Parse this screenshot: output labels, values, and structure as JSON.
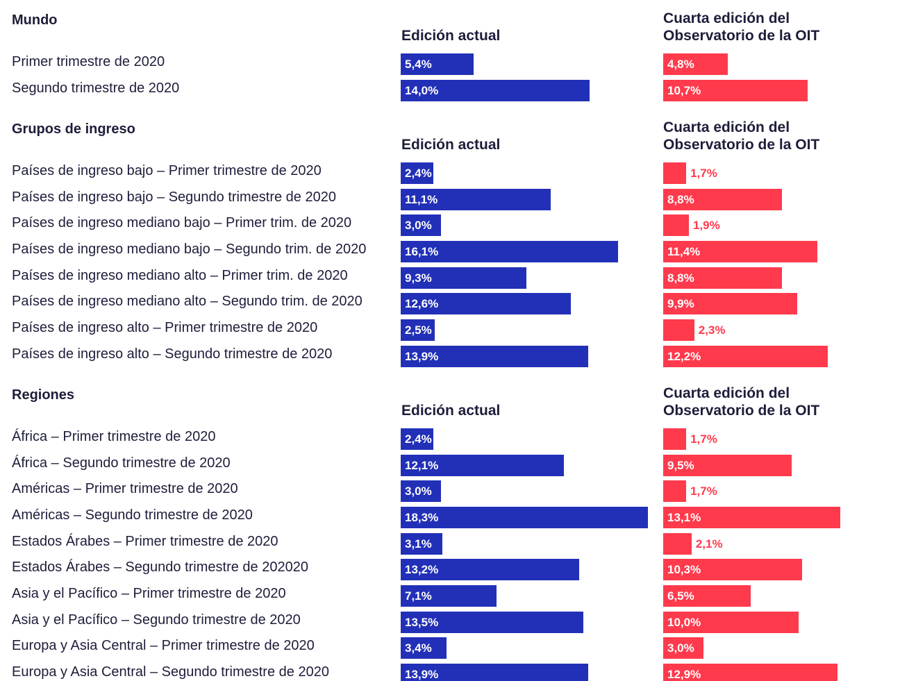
{
  "chart_data": [
    {
      "type": "bar",
      "title": "Mundo",
      "categories": [
        "Primer trimestre de 2020",
        "Segundo trimestre de 2020"
      ],
      "series": [
        {
          "name": "Edición actual",
          "color": "#2230b8",
          "values": [
            5.4,
            14.0
          ],
          "value_labels": [
            "5,4%",
            "14,0%"
          ]
        },
        {
          "name": "Cuarta edición del Observatorio de la OIT",
          "color": "#ff3a4c",
          "values": [
            4.8,
            10.7
          ],
          "value_labels": [
            "4,8%",
            "10,7%"
          ]
        }
      ]
    },
    {
      "type": "bar",
      "title": "Grupos de ingreso",
      "categories": [
        "Países de ingreso bajo – Primer trimestre de 2020",
        "Países de ingreso bajo – Segundo trimestre de 2020",
        "Países de ingreso mediano bajo – Primer trim. de 2020",
        "Países de ingreso mediano bajo – Segundo trim. de 2020",
        "Países de ingreso mediano alto – Primer trim. de 2020",
        "Países de ingreso mediano alto – Segundo trim. de 2020",
        "Países de ingreso alto – Primer trimestre de 2020",
        "Países de ingreso alto – Segundo trimestre de 2020"
      ],
      "series": [
        {
          "name": "Edición actual",
          "color": "#2230b8",
          "values": [
            2.4,
            11.1,
            3.0,
            16.1,
            9.3,
            12.6,
            2.5,
            13.9
          ],
          "value_labels": [
            "2,4%",
            "11,1%",
            "3,0%",
            "16,1%",
            "9,3%",
            "12,6%",
            "2,5%",
            "13,9%"
          ]
        },
        {
          "name": "Cuarta edición del Observatorio de la OIT",
          "color": "#ff3a4c",
          "values": [
            1.7,
            8.8,
            1.9,
            11.4,
            8.8,
            9.9,
            2.3,
            12.2
          ],
          "value_labels": [
            "1,7%",
            "8,8%",
            "1,9%",
            "11,4%",
            "8,8%",
            "9,9%",
            "2,3%",
            "12,2%"
          ]
        }
      ]
    },
    {
      "type": "bar",
      "title": "Regiones",
      "categories": [
        "África – Primer trimestre de 2020",
        "África – Segundo trimestre de 2020",
        "Américas – Primer trimestre de 2020",
        "Américas – Segundo trimestre de 2020",
        "Estados Árabes – Primer trimestre de 2020",
        "Estados Árabes – Segundo trimestre de 202020",
        "Asia y el Pacífico – Primer trimestre de 2020",
        "Asia y el Pacífico – Segundo trimestre de 2020",
        "Europa y Asia Central – Primer trimestre de 2020",
        "Europa y Asia Central – Segundo trimestre de 2020"
      ],
      "series": [
        {
          "name": "Edición actual",
          "color": "#2230b8",
          "values": [
            2.4,
            12.1,
            3.0,
            18.3,
            3.1,
            13.2,
            7.1,
            13.5,
            3.4,
            13.9
          ],
          "value_labels": [
            "2,4%",
            "12,1%",
            "3,0%",
            "18,3%",
            "3,1%",
            "13,2%",
            "7,1%",
            "13,5%",
            "3,4%",
            "13,9%"
          ]
        },
        {
          "name": "Cuarta edición del Observatorio de la OIT",
          "color": "#ff3a4c",
          "values": [
            1.7,
            9.5,
            1.7,
            13.1,
            2.1,
            10.3,
            6.5,
            10.0,
            3.0,
            12.9
          ],
          "value_labels": [
            "1,7%",
            "9,5%",
            "1,7%",
            "13,1%",
            "2,1%",
            "10,3%",
            "6,5%",
            "10,0%",
            "3,0%",
            "12,9%"
          ]
        }
      ]
    }
  ]
}
